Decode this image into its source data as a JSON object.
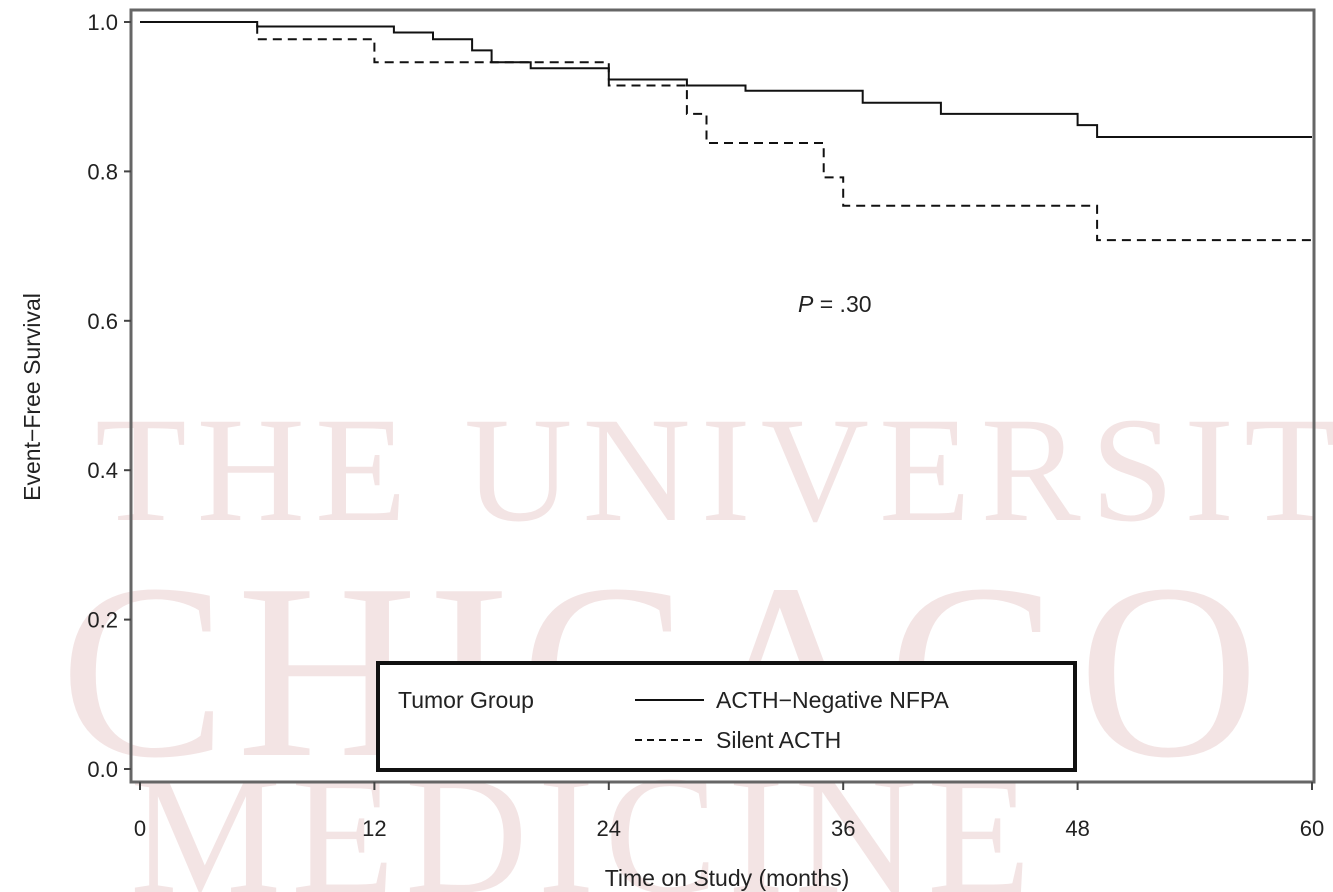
{
  "watermark": {
    "line1": "THE UNIVERSITY OF",
    "line2": "CHICAGO",
    "line3": "MEDICINE"
  },
  "chart_data": {
    "type": "line",
    "step": true,
    "xlabel": "Time on Study (months)",
    "ylabel": "Event−Free Survival",
    "xlim": [
      0,
      60
    ],
    "ylim": [
      0,
      1.0
    ],
    "xticks": [
      0,
      12,
      24,
      36,
      48,
      60
    ],
    "xtick_labels": [
      "0",
      "12",
      "24",
      "36",
      "48",
      "60"
    ],
    "yticks": [
      0.0,
      0.2,
      0.4,
      0.6,
      0.8,
      1.0
    ],
    "ytick_labels": [
      "0.0",
      "0.2",
      "0.4",
      "0.6",
      "0.8",
      "1.0"
    ],
    "grid": false,
    "annotation": {
      "prefix": "P",
      "suffix": " = .30",
      "x": 36.5,
      "y": 0.62
    },
    "legend": {
      "title": "Tumor Group",
      "placement": "bottom-center",
      "entries": [
        "ACTH−Negative NFPA",
        "Silent ACTH"
      ]
    },
    "series": [
      {
        "name": "ACTH−Negative NFPA",
        "style": "solid",
        "color": "#111111",
        "points": [
          [
            0,
            1.0
          ],
          [
            6,
            1.0
          ],
          [
            6,
            0.994
          ],
          [
            13,
            0.994
          ],
          [
            13,
            0.986
          ],
          [
            15,
            0.986
          ],
          [
            15,
            0.977
          ],
          [
            17,
            0.977
          ],
          [
            17,
            0.962
          ],
          [
            18,
            0.962
          ],
          [
            18,
            0.946
          ],
          [
            20,
            0.946
          ],
          [
            20,
            0.938
          ],
          [
            24,
            0.938
          ],
          [
            24,
            0.923
          ],
          [
            28,
            0.923
          ],
          [
            28,
            0.915
          ],
          [
            31,
            0.915
          ],
          [
            31,
            0.908
          ],
          [
            37,
            0.908
          ],
          [
            37,
            0.892
          ],
          [
            41,
            0.892
          ],
          [
            41,
            0.877
          ],
          [
            48,
            0.877
          ],
          [
            48,
            0.862
          ],
          [
            49,
            0.862
          ],
          [
            49,
            0.846
          ],
          [
            60,
            0.846
          ]
        ]
      },
      {
        "name": "Silent ACTH",
        "style": "dashed",
        "color": "#111111",
        "points": [
          [
            0,
            1.0
          ],
          [
            6,
            1.0
          ],
          [
            6,
            0.977
          ],
          [
            12,
            0.977
          ],
          [
            12,
            0.946
          ],
          [
            24,
            0.946
          ],
          [
            24,
            0.915
          ],
          [
            28,
            0.915
          ],
          [
            28,
            0.877
          ],
          [
            29,
            0.877
          ],
          [
            29,
            0.838
          ],
          [
            35,
            0.838
          ],
          [
            35,
            0.792
          ],
          [
            36,
            0.792
          ],
          [
            36,
            0.754
          ],
          [
            49,
            0.754
          ],
          [
            49,
            0.708
          ],
          [
            60,
            0.708
          ]
        ]
      }
    ]
  }
}
